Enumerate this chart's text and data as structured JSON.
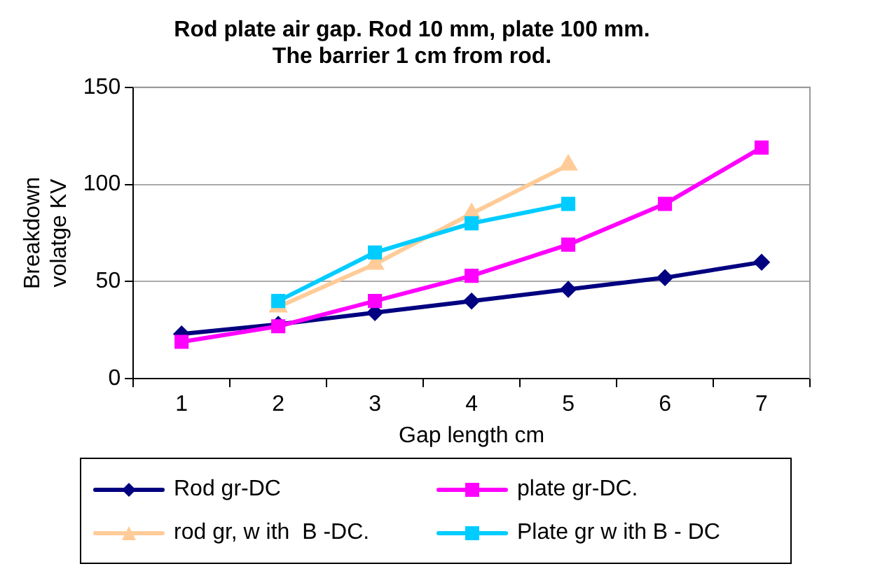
{
  "chart_data": {
    "type": "line",
    "title": "Rod plate air gap. Rod 10 mm, plate 100 mm.\nThe barrier 1 cm from rod.",
    "xlabel": "Gap length cm",
    "ylabel": "Breakdown volatge KV",
    "categories": [
      "1",
      "2",
      "3",
      "4",
      "5",
      "6",
      "7"
    ],
    "ylim": [
      0,
      150
    ],
    "yticks": [
      0,
      50,
      100,
      150
    ],
    "grid": "y",
    "legend": "bottom",
    "series": [
      {
        "name": "Rod gr-DC",
        "color": "#000080",
        "marker": "diamond",
        "values": [
          23,
          28,
          34,
          40,
          46,
          52,
          60
        ]
      },
      {
        "name": "plate gr-DC.",
        "color": "#ff00ff",
        "marker": "square",
        "values": [
          19,
          27,
          40,
          53,
          69,
          90,
          119
        ]
      },
      {
        "name": "rod gr, w ith  B -DC.",
        "color": "#ffcc99",
        "marker": "triangle",
        "values": [
          null,
          37,
          59,
          85,
          110,
          null,
          null
        ]
      },
      {
        "name": "Plate gr w ith B - DC",
        "color": "#00ccff",
        "marker": "square",
        "values": [
          null,
          40,
          65,
          80,
          90,
          null,
          null
        ]
      }
    ]
  }
}
